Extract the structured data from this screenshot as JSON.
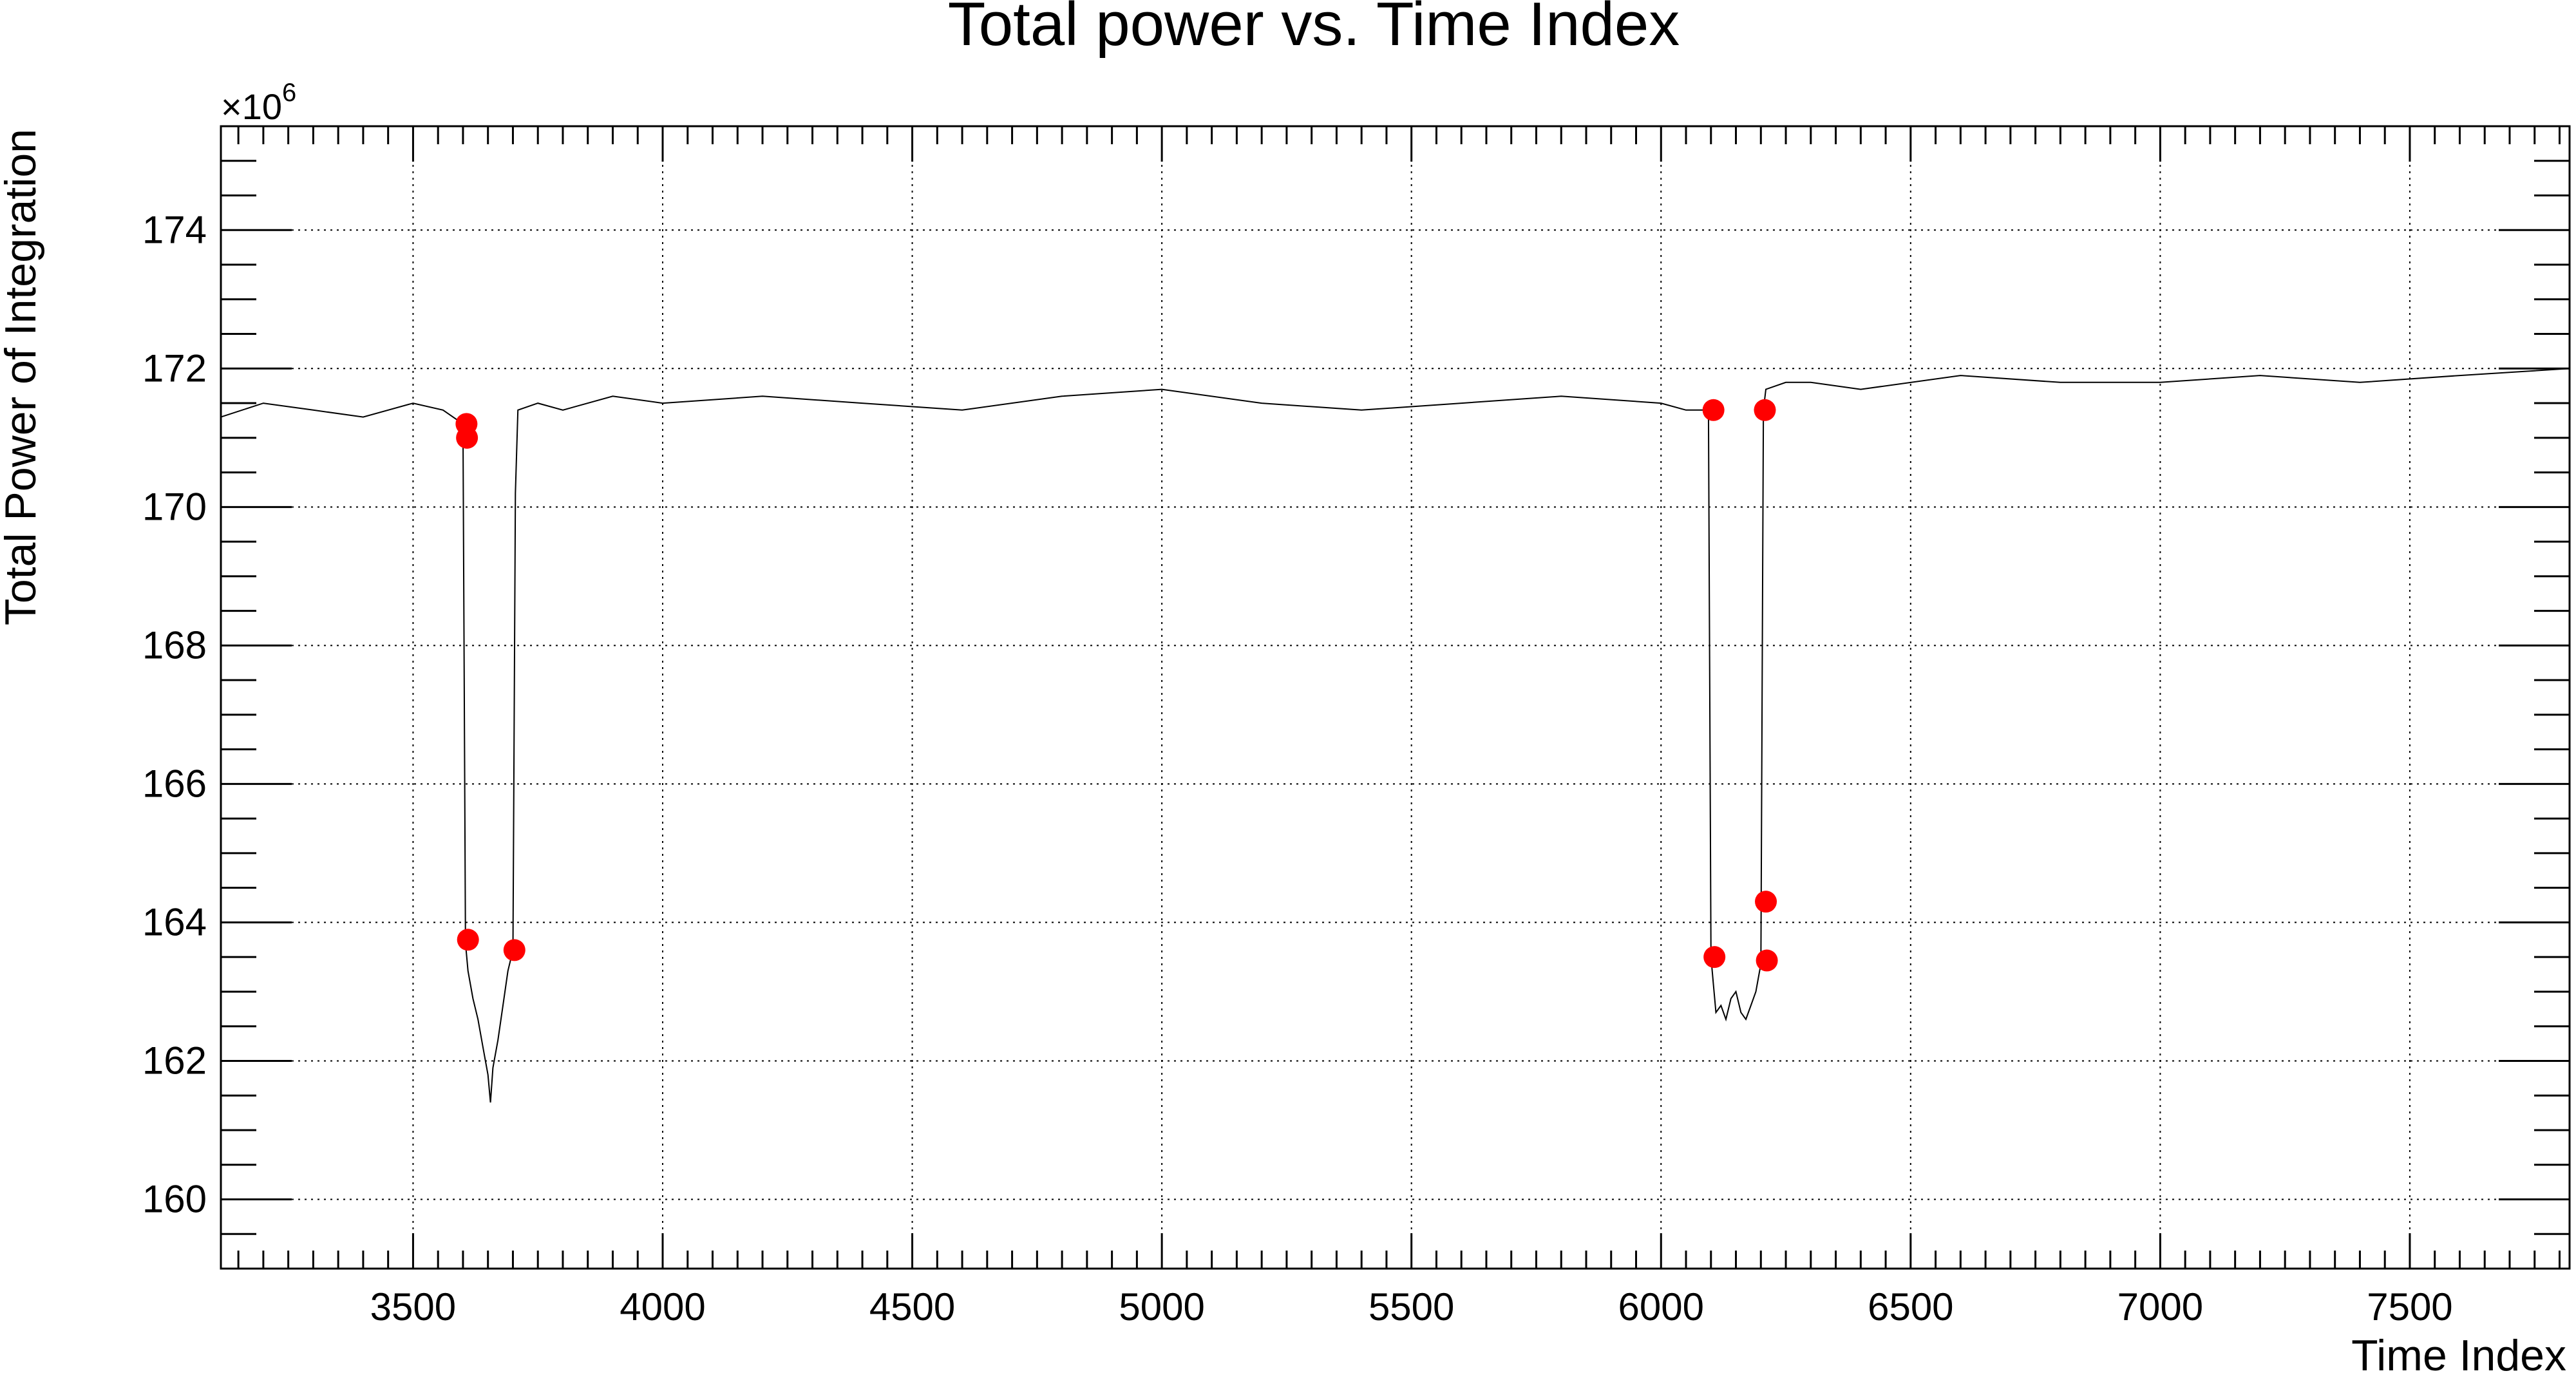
{
  "chart_data": {
    "type": "line",
    "title": "Total power vs. Time Index",
    "xlabel": "Time Index",
    "ylabel": "Total Power of Integration",
    "y_multiplier_prefix": "×10",
    "y_multiplier_exponent": "6",
    "xlim": [
      3115,
      7820
    ],
    "ylim": [
      159,
      175.5
    ],
    "x_ticks": [
      3500,
      4000,
      4500,
      5000,
      5500,
      6000,
      6500,
      7000,
      7500
    ],
    "x_tick_labels": [
      "3500",
      "4000",
      "4500",
      "5000",
      "5500",
      "6000",
      "6500",
      "7000",
      "7500"
    ],
    "y_ticks": [
      160,
      162,
      164,
      166,
      168,
      170,
      172,
      174
    ],
    "y_tick_labels": [
      "160",
      "162",
      "164",
      "166",
      "168",
      "170",
      "172",
      "174"
    ],
    "grid": true,
    "colors": {
      "line": "#000000",
      "markers": "#ff0000"
    },
    "series": [
      {
        "style": "line",
        "x": [
          3115,
          3200,
          3300,
          3400,
          3500,
          3560,
          3600,
          3605,
          3610,
          3620,
          3630,
          3640,
          3650,
          3655,
          3660,
          3670,
          3680,
          3690,
          3700,
          3705,
          3710,
          3750,
          3800,
          3900,
          4000,
          4200,
          4400,
          4600,
          4800,
          5000,
          5200,
          5400,
          5600,
          5800,
          6000,
          6050,
          6095,
          6100,
          6105,
          6110,
          6120,
          6130,
          6140,
          6150,
          6160,
          6170,
          6180,
          6190,
          6200,
          6205,
          6210,
          6250,
          6300,
          6400,
          6600,
          6800,
          7000,
          7200,
          7400,
          7600,
          7820
        ],
        "y": [
          171.3,
          171.5,
          171.4,
          171.3,
          171.5,
          171.4,
          171.2,
          163.7,
          163.3,
          162.9,
          162.6,
          162.2,
          161.8,
          161.4,
          161.9,
          162.3,
          162.8,
          163.3,
          163.6,
          170.2,
          171.4,
          171.5,
          171.4,
          171.6,
          171.5,
          171.6,
          171.5,
          171.4,
          171.6,
          171.7,
          171.5,
          171.4,
          171.5,
          171.6,
          171.5,
          171.4,
          171.4,
          163.5,
          163.1,
          162.7,
          162.8,
          162.6,
          162.9,
          163.0,
          162.7,
          162.6,
          162.8,
          163.0,
          163.4,
          171.4,
          171.7,
          171.8,
          171.8,
          171.7,
          171.9,
          171.8,
          171.8,
          171.9,
          171.8,
          171.9,
          172.0
        ]
      },
      {
        "style": "markers",
        "x": [
          3607,
          3608,
          3610,
          3703,
          6105,
          6107,
          6208,
          6210,
          6212
        ],
        "y": [
          171.2,
          171.0,
          163.75,
          163.6,
          171.4,
          163.5,
          171.4,
          164.3,
          163.45
        ]
      }
    ]
  }
}
